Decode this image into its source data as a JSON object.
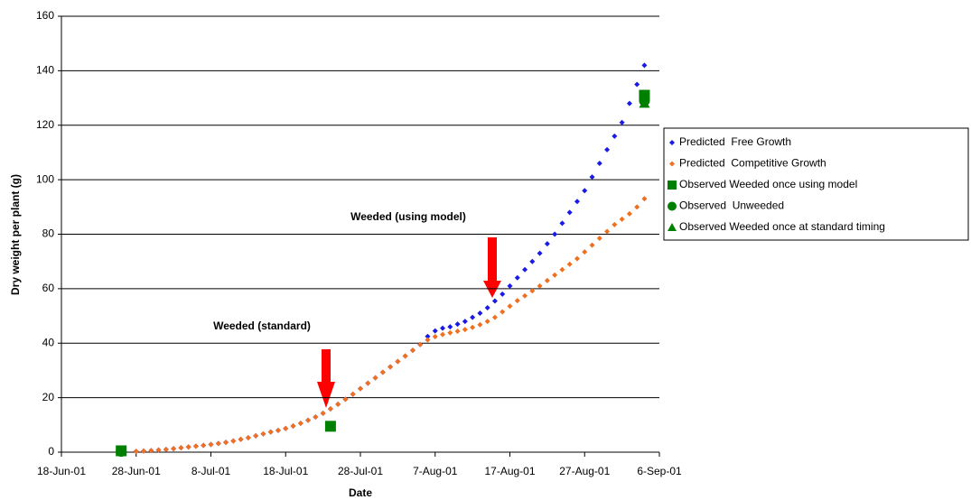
{
  "chart_data": {
    "type": "scatter",
    "x_label": "Date",
    "y_label": "Dry weight per plant (g)",
    "xlim": [
      "2001-06-18",
      "2001-09-06"
    ],
    "xticks": [
      {
        "value": "2001-06-18",
        "label": "18-Jun-01"
      },
      {
        "value": "2001-06-28",
        "label": "28-Jun-01"
      },
      {
        "value": "2001-07-08",
        "label": "8-Jul-01"
      },
      {
        "value": "2001-07-18",
        "label": "18-Jul-01"
      },
      {
        "value": "2001-07-28",
        "label": "28-Jul-01"
      },
      {
        "value": "2001-08-07",
        "label": "7-Aug-01"
      },
      {
        "value": "2001-08-17",
        "label": "17-Aug-01"
      },
      {
        "value": "2001-08-27",
        "label": "27-Aug-01"
      },
      {
        "value": "2001-09-06",
        "label": "6-Sep-01"
      }
    ],
    "ylim": [
      0,
      160
    ],
    "yticks": [
      0,
      20,
      40,
      60,
      80,
      100,
      120,
      140,
      160
    ],
    "grid": true,
    "legend": "right",
    "annotations": [
      "Weeded (using model)",
      "Weeded (standard)"
    ],
    "series": [
      {
        "name": "Predicted  Free Growth",
        "color": "#1a1ae6",
        "marker": "diamond",
        "x": [
          "2001-06-28",
          "2001-06-29",
          "2001-06-30",
          "2001-07-01",
          "2001-07-02",
          "2001-07-03",
          "2001-07-04",
          "2001-07-05",
          "2001-07-06",
          "2001-07-07",
          "2001-07-08",
          "2001-07-09",
          "2001-07-10",
          "2001-07-11",
          "2001-07-12",
          "2001-07-13",
          "2001-07-14",
          "2001-07-15",
          "2001-07-16",
          "2001-07-17",
          "2001-07-18",
          "2001-07-19",
          "2001-07-20",
          "2001-07-21",
          "2001-07-22",
          "2001-07-23",
          "2001-07-24",
          "2001-07-25",
          "2001-07-26",
          "2001-07-27",
          "2001-07-28",
          "2001-07-29",
          "2001-07-30",
          "2001-07-31",
          "2001-08-01",
          "2001-08-02",
          "2001-08-03",
          "2001-08-04",
          "2001-08-05",
          "2001-08-06",
          "2001-08-07",
          "2001-08-08",
          "2001-08-09",
          "2001-08-10",
          "2001-08-11",
          "2001-08-12",
          "2001-08-13",
          "2001-08-14",
          "2001-08-15",
          "2001-08-16",
          "2001-08-17",
          "2001-08-18",
          "2001-08-19",
          "2001-08-20",
          "2001-08-21",
          "2001-08-22",
          "2001-08-23",
          "2001-08-24",
          "2001-08-25",
          "2001-08-26",
          "2001-08-27",
          "2001-08-28",
          "2001-08-29",
          "2001-08-30",
          "2001-08-31",
          "2001-09-01",
          "2001-09-02",
          "2001-09-03",
          "2001-09-04"
        ],
        "values": [
          0.3,
          0.4,
          0.6,
          0.8,
          1.0,
          1.3,
          1.6,
          1.9,
          2.2,
          2.5,
          2.8,
          3.2,
          3.6,
          4.1,
          4.7,
          5.3,
          6.0,
          6.7,
          7.4,
          8.0,
          8.7,
          9.6,
          10.6,
          11.7,
          12.9,
          14.3,
          15.9,
          17.6,
          19.4,
          21.3,
          23.3,
          25.3,
          27.3,
          29.3,
          31.3,
          33.3,
          35.3,
          37.4,
          39.5,
          42.5,
          44.5,
          45.5,
          46.0,
          47.0,
          48.0,
          49.5,
          51.0,
          53.0,
          55.5,
          58.0,
          61.0,
          64.0,
          67.0,
          70.0,
          73.0,
          76.5,
          80.0,
          84.0,
          88.0,
          92.0,
          96.0,
          101.0,
          106.0,
          111.0,
          116.0,
          121.0,
          128.0,
          135.0,
          142.0
        ]
      },
      {
        "name": "Predicted  Competitive Growth",
        "color": "#f07020",
        "marker": "diamond",
        "x": [
          "2001-06-28",
          "2001-06-29",
          "2001-06-30",
          "2001-07-01",
          "2001-07-02",
          "2001-07-03",
          "2001-07-04",
          "2001-07-05",
          "2001-07-06",
          "2001-07-07",
          "2001-07-08",
          "2001-07-09",
          "2001-07-10",
          "2001-07-11",
          "2001-07-12",
          "2001-07-13",
          "2001-07-14",
          "2001-07-15",
          "2001-07-16",
          "2001-07-17",
          "2001-07-18",
          "2001-07-19",
          "2001-07-20",
          "2001-07-21",
          "2001-07-22",
          "2001-07-23",
          "2001-07-24",
          "2001-07-25",
          "2001-07-26",
          "2001-07-27",
          "2001-07-28",
          "2001-07-29",
          "2001-07-30",
          "2001-07-31",
          "2001-08-01",
          "2001-08-02",
          "2001-08-03",
          "2001-08-04",
          "2001-08-05",
          "2001-08-06",
          "2001-08-07",
          "2001-08-08",
          "2001-08-09",
          "2001-08-10",
          "2001-08-11",
          "2001-08-12",
          "2001-08-13",
          "2001-08-14",
          "2001-08-15",
          "2001-08-16",
          "2001-08-17",
          "2001-08-18",
          "2001-08-19",
          "2001-08-20",
          "2001-08-21",
          "2001-08-22",
          "2001-08-23",
          "2001-08-24",
          "2001-08-25",
          "2001-08-26",
          "2001-08-27",
          "2001-08-28",
          "2001-08-29",
          "2001-08-30",
          "2001-08-31",
          "2001-09-01",
          "2001-09-02",
          "2001-09-03",
          "2001-09-04"
        ],
        "values": [
          0.3,
          0.4,
          0.6,
          0.8,
          1.0,
          1.3,
          1.6,
          1.9,
          2.2,
          2.5,
          2.8,
          3.2,
          3.6,
          4.1,
          4.7,
          5.3,
          6.0,
          6.7,
          7.4,
          8.0,
          8.7,
          9.6,
          10.6,
          11.7,
          12.9,
          14.3,
          15.9,
          17.6,
          19.4,
          21.3,
          23.3,
          25.3,
          27.3,
          29.3,
          31.3,
          33.3,
          35.3,
          37.4,
          39.5,
          41.2,
          42.4,
          43.2,
          43.8,
          44.4,
          45.0,
          45.8,
          46.8,
          48.0,
          49.5,
          51.5,
          53.6,
          55.6,
          57.4,
          59.2,
          61.0,
          63.0,
          65.0,
          67.0,
          69.0,
          71.0,
          73.5,
          76.0,
          78.5,
          81.0,
          83.5,
          85.5,
          87.5,
          90.0,
          93.0
        ]
      },
      {
        "name": "Observed Weeded once using model",
        "color": "#008000",
        "marker": "square",
        "x": [
          "2001-06-26",
          "2001-07-24",
          "2001-09-04"
        ],
        "values": [
          0.5,
          9.5,
          131
        ]
      },
      {
        "name": "Observed  Unweeded",
        "color": "#008000",
        "marker": "circle",
        "x": [
          "2001-06-26",
          "2001-09-04"
        ],
        "values": [
          0.3,
          129
        ]
      },
      {
        "name": "Observed Weeded once at standard timing",
        "color": "#008000",
        "marker": "triangle",
        "x": [
          "2001-09-04"
        ],
        "values": [
          128
        ]
      }
    ]
  }
}
